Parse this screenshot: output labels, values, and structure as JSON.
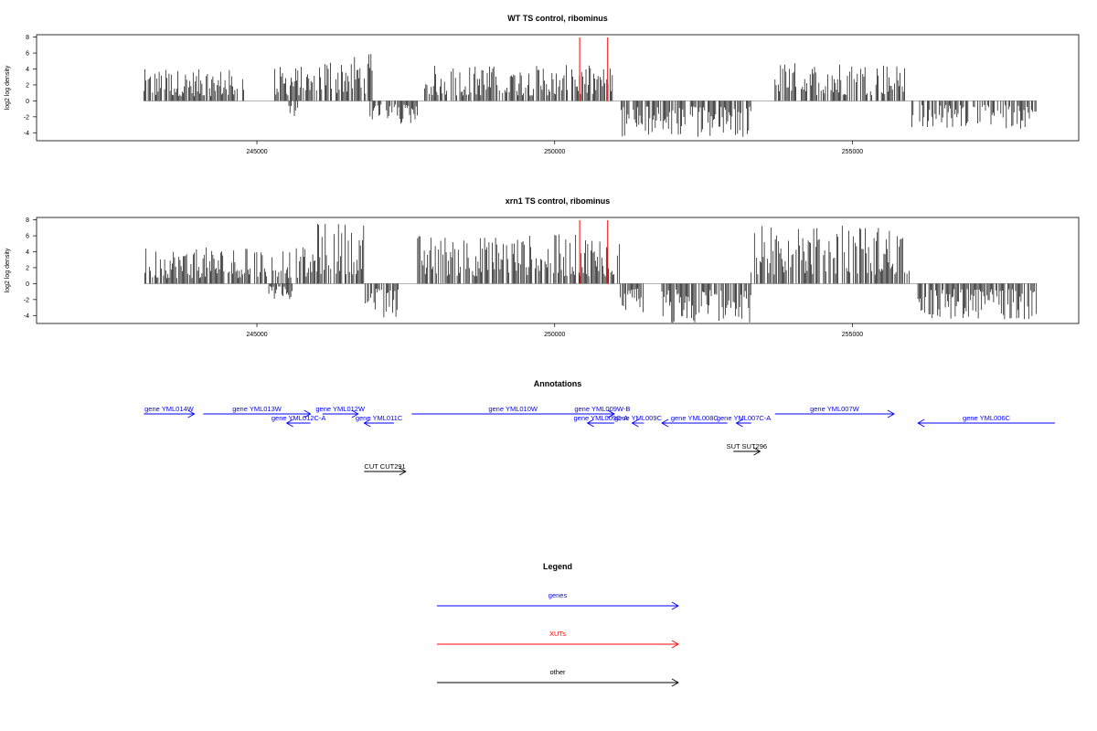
{
  "chart_data": [
    {
      "type": "bar",
      "title": "WT TS control, ribominus",
      "ylabel": "log2 log density",
      "xlabel": "",
      "xlim": [
        241300,
        258800
      ],
      "ylim": [
        -5,
        8.3
      ],
      "xticks": [
        245000,
        250000,
        255000
      ],
      "xtick_labels": [
        "245000",
        "250000",
        "255000"
      ],
      "yticks": [
        -4,
        -2,
        0,
        2,
        4,
        6,
        8
      ],
      "ytick_labels": [
        "-4",
        "-2",
        "0",
        "2",
        "4",
        "6",
        "8"
      ],
      "grid": false,
      "baseline": {
        "from": 243100,
        "to": 258100,
        "color": "#999999"
      },
      "markers": [
        {
          "x": 250420,
          "color": "#ff0000"
        },
        {
          "x": 250890,
          "color": "#ff0000"
        }
      ],
      "series": [
        {
          "strand": "+",
          "segments": [
            {
              "from": 243100,
              "to": 244800,
              "max": 4.0
            },
            {
              "from": 245300,
              "to": 246000,
              "max": 4.4
            },
            {
              "from": 246050,
              "to": 246950,
              "max": 6.0
            },
            {
              "from": 247800,
              "to": 251000,
              "max": 4.5
            },
            {
              "from": 253700,
              "to": 255900,
              "max": 4.9
            }
          ]
        },
        {
          "strand": "-",
          "segments": [
            {
              "from": 245500,
              "to": 245700,
              "min": -2.0
            },
            {
              "from": 246900,
              "to": 247700,
              "min": -3.0
            },
            {
              "from": 251100,
              "to": 253300,
              "min": -4.7
            },
            {
              "from": 256000,
              "to": 258100,
              "min": -3.5
            }
          ]
        }
      ]
    },
    {
      "type": "bar",
      "title": "xrn1 TS control, ribominus",
      "ylabel": "log2 log density",
      "xlabel": "",
      "xlim": [
        241300,
        258800
      ],
      "ylim": [
        -5,
        8.3
      ],
      "xticks": [
        245000,
        250000,
        255000
      ],
      "xtick_labels": [
        "245000",
        "250000",
        "255000"
      ],
      "yticks": [
        -4,
        -2,
        0,
        2,
        4,
        6,
        8
      ],
      "ytick_labels": [
        "-4",
        "-2",
        "0",
        "2",
        "4",
        "6",
        "8"
      ],
      "grid": false,
      "baseline": {
        "from": 243100,
        "to": 258100,
        "color": "#999999"
      },
      "markers": [
        {
          "x": 250420,
          "color": "#ff0000"
        },
        {
          "x": 250890,
          "color": "#ff0000"
        }
      ],
      "series": [
        {
          "strand": "+",
          "segments": [
            {
              "from": 243100,
              "to": 246000,
              "max": 4.6
            },
            {
              "from": 246000,
              "to": 246800,
              "max": 7.8
            },
            {
              "from": 247700,
              "to": 251100,
              "max": 6.2
            },
            {
              "from": 253300,
              "to": 256000,
              "max": 7.4
            }
          ]
        },
        {
          "strand": "-",
          "segments": [
            {
              "from": 245200,
              "to": 245600,
              "min": -2.0
            },
            {
              "from": 246800,
              "to": 247400,
              "min": -4.3
            },
            {
              "from": 251100,
              "to": 251500,
              "min": -3.7
            },
            {
              "from": 251800,
              "to": 253300,
              "min": -5.0
            },
            {
              "from": 256100,
              "to": 258100,
              "min": -4.6
            }
          ]
        }
      ]
    },
    {
      "type": "annotation-track",
      "title": "Annotations",
      "xlim": [
        241300,
        258800
      ],
      "features": [
        {
          "label": "gene YML014W",
          "start": 243100,
          "end": 243950,
          "strand": "+",
          "row": 0,
          "color": "#0000ff"
        },
        {
          "label": "gene YML013W",
          "start": 244100,
          "end": 245900,
          "strand": "+",
          "row": 0,
          "color": "#0000ff"
        },
        {
          "label": "gene YML012W",
          "start": 246100,
          "end": 246700,
          "strand": "+",
          "row": 0,
          "color": "#0000ff"
        },
        {
          "label": "gene YML010W",
          "start": 247600,
          "end": 251000,
          "strand": "+",
          "row": 0,
          "color": "#0000ff"
        },
        {
          "label": "gene YML009W-B",
          "start": 250600,
          "end": 251000,
          "strand": "+",
          "row": 0,
          "color": "#0000ff"
        },
        {
          "label": "gene YML007W",
          "start": 253700,
          "end": 255700,
          "strand": "+",
          "row": 0,
          "color": "#0000ff"
        },
        {
          "label": "gene YML012C-A",
          "start": 245500,
          "end": 245900,
          "strand": "-",
          "row": 1,
          "color": "#0000ff"
        },
        {
          "label": "gene YML011C",
          "start": 246800,
          "end": 247300,
          "strand": "-",
          "row": 1,
          "color": "#0000ff"
        },
        {
          "label": "gene YML009C-A",
          "start": 250550,
          "end": 251000,
          "strand": "-",
          "row": 1,
          "color": "#0000ff"
        },
        {
          "label": "gene YML009C",
          "start": 251300,
          "end": 251500,
          "strand": "-",
          "row": 1,
          "color": "#0000ff"
        },
        {
          "label": "gene YML008C",
          "start": 251800,
          "end": 252900,
          "strand": "-",
          "row": 1,
          "color": "#0000ff"
        },
        {
          "label": "gene YML007C-A",
          "start": 253050,
          "end": 253300,
          "strand": "-",
          "row": 1,
          "color": "#0000ff"
        },
        {
          "label": "gene YML006C",
          "start": 256100,
          "end": 258400,
          "strand": "-",
          "row": 1,
          "color": "#0000ff"
        },
        {
          "label": "SUT SUT296",
          "start": 253000,
          "end": 253450,
          "strand": "+",
          "row": 2,
          "color": "#000000"
        },
        {
          "label": "CUT CUT291",
          "start": 246800,
          "end": 247500,
          "strand": "+",
          "row": 3,
          "color": "#000000"
        }
      ]
    },
    {
      "type": "legend",
      "title": "Legend",
      "entries": [
        {
          "label": "genes",
          "color": "#0000ff"
        },
        {
          "label": "XUTs",
          "color": "#ff0000"
        },
        {
          "label": "other",
          "color": "#000000"
        }
      ]
    }
  ]
}
